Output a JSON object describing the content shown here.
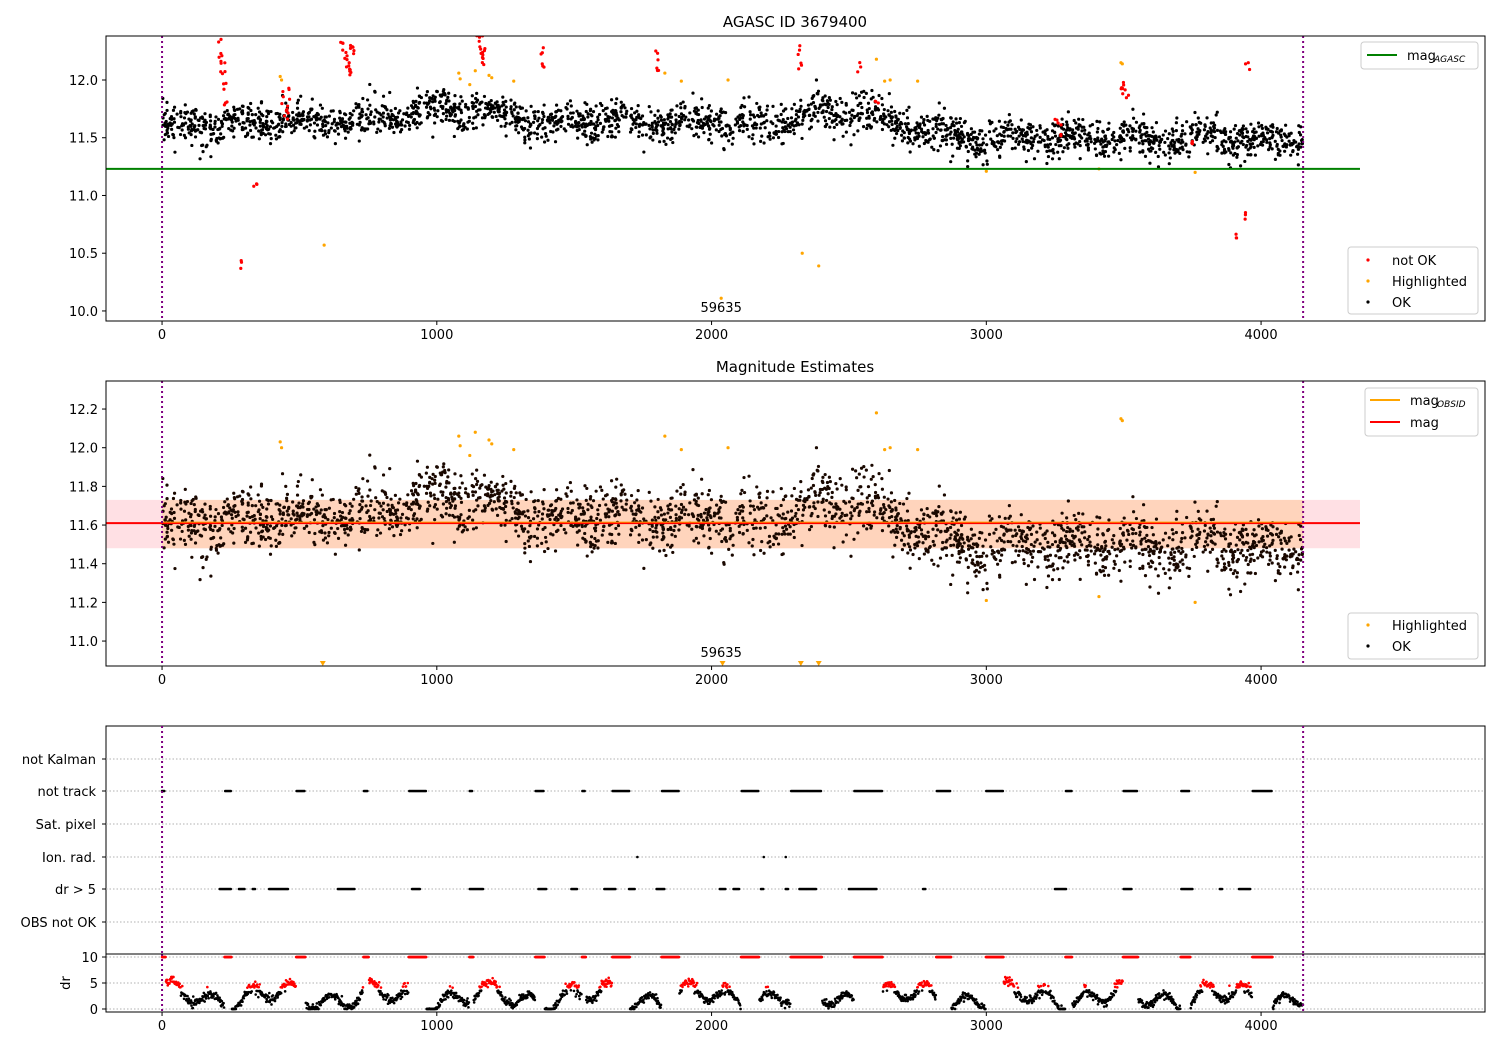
{
  "chart_data": [
    {
      "type": "scatter",
      "title": "AGASC ID 3679400",
      "xlim": [
        -204,
        4815
      ],
      "ylim": [
        9.913,
        12.381
      ],
      "xticks": [
        0,
        1000,
        2000,
        3000,
        4000
      ],
      "yticks": [
        10.0,
        10.5,
        11.0,
        11.5,
        12.0
      ],
      "annotation": "59635",
      "legend_lines": [
        {
          "label": "mag",
          "sub": "AGASC",
          "color": "#008000"
        }
      ],
      "legend_points": [
        {
          "label": "not OK",
          "color": "#ff0000"
        },
        {
          "label": "Highlighted",
          "color": "#ffa500"
        },
        {
          "label": "OK",
          "color": "#000000"
        }
      ],
      "mag_agasc": 11.23,
      "obs_boundaries": [
        0,
        4153
      ]
    },
    {
      "type": "scatter",
      "title": "Magnitude Estimates",
      "xlim": [
        -204,
        4815
      ],
      "ylim": [
        10.871,
        12.345
      ],
      "xticks": [
        0,
        1000,
        2000,
        3000,
        4000
      ],
      "yticks": [
        11.0,
        11.2,
        11.4,
        11.6,
        11.8,
        12.0,
        12.2
      ],
      "annotation": "59635",
      "legend_lines": [
        {
          "label": "mag",
          "sub": "OBSID",
          "color": "#ffa500"
        },
        {
          "label": "mag",
          "sub": "",
          "color": "#ff0000"
        }
      ],
      "legend_points": [
        {
          "label": "Highlighted",
          "color": "#ffa500"
        },
        {
          "label": "OK",
          "color": "#000000"
        }
      ],
      "mag": 11.61,
      "mag_band": [
        11.48,
        11.73
      ],
      "below_range_markers": [
        585,
        2040,
        2325,
        2390
      ]
    },
    {
      "type": "scatter",
      "title": "",
      "categories": [
        "not Kalman",
        "not track",
        "Sat. pixel",
        "Ion. rad.",
        "dr > 5",
        "OBS not OK"
      ],
      "flags": {
        "not track": [
          [
            0,
            10
          ],
          [
            230,
            250
          ],
          [
            490,
            520
          ],
          [
            735,
            750
          ],
          [
            900,
            960
          ],
          [
            1120,
            1130
          ],
          [
            1360,
            1390
          ],
          [
            1530,
            1540
          ],
          [
            1640,
            1700
          ],
          [
            1820,
            1880
          ],
          [
            2110,
            2170
          ],
          [
            2290,
            2400
          ],
          [
            2520,
            2620
          ],
          [
            2820,
            2870
          ],
          [
            3000,
            3060
          ],
          [
            3290,
            3310
          ],
          [
            3500,
            3550
          ],
          [
            3710,
            3740
          ],
          [
            3970,
            4040
          ]
        ],
        "Ion. rad.": [
          [
            1730,
            1731
          ],
          [
            2190,
            2191
          ],
          [
            2270,
            2271
          ]
        ],
        "dr > 5": [
          [
            210,
            250
          ],
          [
            280,
            300
          ],
          [
            330,
            340
          ],
          [
            390,
            460
          ],
          [
            640,
            700
          ],
          [
            910,
            940
          ],
          [
            1120,
            1170
          ],
          [
            1370,
            1400
          ],
          [
            1490,
            1510
          ],
          [
            1610,
            1650
          ],
          [
            1700,
            1720
          ],
          [
            1800,
            1830
          ],
          [
            2030,
            2050
          ],
          [
            2080,
            2100
          ],
          [
            2180,
            2190
          ],
          [
            2270,
            2280
          ],
          [
            2320,
            2380
          ],
          [
            2500,
            2600
          ],
          [
            2770,
            2780
          ],
          [
            3250,
            3290
          ],
          [
            3500,
            3530
          ],
          [
            3710,
            3750
          ],
          [
            3850,
            3860
          ],
          [
            3920,
            3960
          ]
        ]
      }
    },
    {
      "type": "scatter",
      "ylabel": "dr",
      "xlim": [
        -204,
        4815
      ],
      "ylim": [
        -0.58,
        10.58
      ],
      "yticks": [
        0,
        5,
        10
      ],
      "xticks": [
        0,
        1000,
        2000,
        3000,
        4000
      ],
      "dr_cap": 10
    },
    {
      "series_ok_mean_by_time": {
        "x": [
          0,
          200,
          400,
          600,
          800,
          1000,
          1200,
          1400,
          1600,
          1800,
          2000,
          2200,
          2400,
          2600,
          2800,
          3000,
          3200,
          3400,
          3600,
          3800,
          4000,
          4153
        ],
        "mean": [
          11.62,
          11.6,
          11.65,
          11.63,
          11.68,
          11.74,
          11.7,
          11.62,
          11.65,
          11.62,
          11.65,
          11.6,
          11.72,
          11.7,
          11.55,
          11.48,
          11.5,
          11.5,
          11.48,
          11.5,
          11.48,
          11.47
        ],
        "scatter": 0.08
      },
      "not_ok_points": [
        [
          210,
          12.35
        ],
        [
          215,
          12.25
        ],
        [
          218,
          12.15
        ],
        [
          222,
          12.05
        ],
        [
          225,
          11.95
        ],
        [
          230,
          11.8
        ],
        [
          285,
          10.41
        ],
        [
          345,
          11.12
        ],
        [
          440,
          11.85
        ],
        [
          450,
          11.78
        ],
        [
          455,
          11.72
        ],
        [
          460,
          11.9
        ],
        [
          650,
          12.35
        ],
        [
          660,
          12.28
        ],
        [
          670,
          12.2
        ],
        [
          675,
          12.15
        ],
        [
          680,
          12.1
        ],
        [
          690,
          12.3
        ],
        [
          700,
          12.25
        ],
        [
          690,
          12.05
        ],
        [
          1150,
          12.38
        ],
        [
          1160,
          12.3
        ],
        [
          1165,
          12.2
        ],
        [
          1170,
          12.15
        ],
        [
          1175,
          12.25
        ],
        [
          1380,
          12.27
        ],
        [
          1385,
          12.12
        ],
        [
          1800,
          12.22
        ],
        [
          1805,
          12.1
        ],
        [
          2320,
          12.25
        ],
        [
          2325,
          12.1
        ],
        [
          2540,
          12.12
        ],
        [
          2600,
          11.8
        ],
        [
          3260,
          11.65
        ],
        [
          3270,
          11.55
        ],
        [
          3490,
          11.9
        ],
        [
          3500,
          11.95
        ],
        [
          3510,
          11.88
        ],
        [
          3910,
          10.66
        ],
        [
          3940,
          10.85
        ],
        [
          3950,
          12.11
        ],
        [
          3750,
          11.45
        ]
      ],
      "highlighted_points": [
        [
          430,
          12.03
        ],
        [
          435,
          12.0
        ],
        [
          590,
          10.57
        ],
        [
          1080,
          12.06
        ],
        [
          1085,
          12.01
        ],
        [
          1120,
          11.96
        ],
        [
          1140,
          12.08
        ],
        [
          1190,
          12.04
        ],
        [
          1200,
          12.02
        ],
        [
          1280,
          11.99
        ],
        [
          1830,
          12.06
        ],
        [
          1890,
          11.99
        ],
        [
          2035,
          10.11
        ],
        [
          2060,
          12.0
        ],
        [
          2330,
          10.5
        ],
        [
          2390,
          10.39
        ],
        [
          2600,
          12.18
        ],
        [
          2630,
          11.99
        ],
        [
          2650,
          12.0
        ],
        [
          2750,
          11.99
        ],
        [
          3000,
          11.21
        ],
        [
          3410,
          11.23
        ],
        [
          3490,
          12.15
        ],
        [
          3495,
          12.14
        ],
        [
          3760,
          11.2
        ]
      ]
    }
  ]
}
